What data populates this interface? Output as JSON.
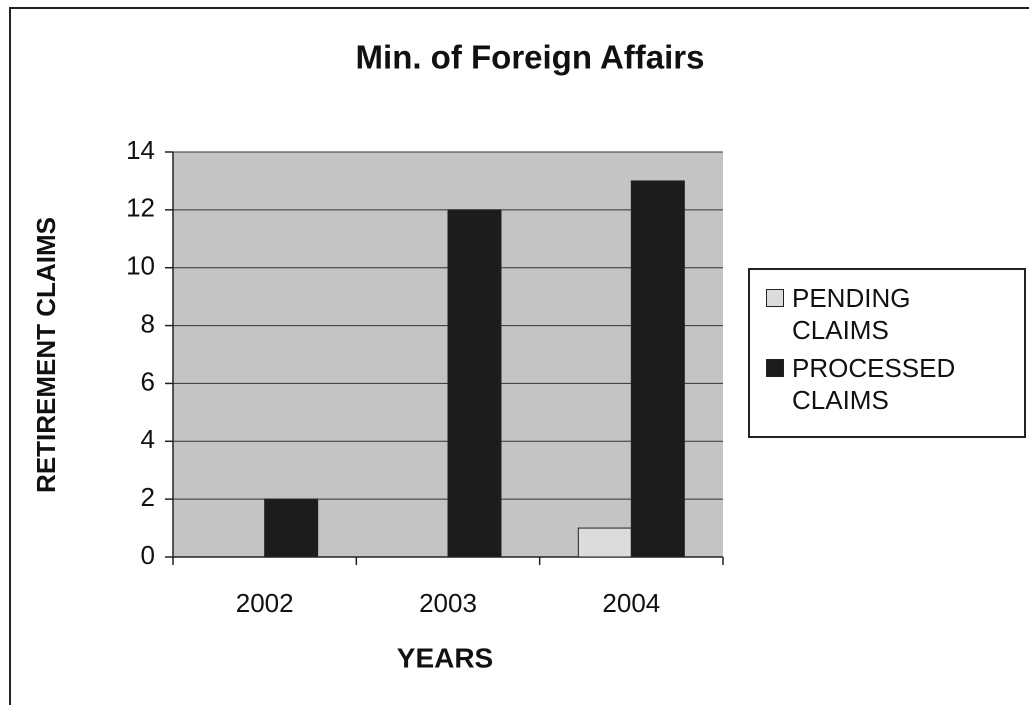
{
  "chart_data": {
    "type": "bar",
    "title": "Min. of Foreign Affairs",
    "x_label": "YEARS",
    "y_label": "RETIREMENT CLAIMS",
    "categories": [
      "2002",
      "2003",
      "2004"
    ],
    "series": [
      {
        "name": "PENDING CLAIMS",
        "color": "#dcdcdc",
        "values": [
          0,
          0,
          1
        ]
      },
      {
        "name": "PROCESSED CLAIMS",
        "color": "#1c1c1c",
        "values": [
          2,
          12,
          13
        ]
      }
    ],
    "ylim": [
      0,
      14
    ],
    "yticks": [
      0,
      2,
      4,
      6,
      8,
      10,
      12,
      14
    ],
    "grid": true,
    "legend": "right"
  }
}
